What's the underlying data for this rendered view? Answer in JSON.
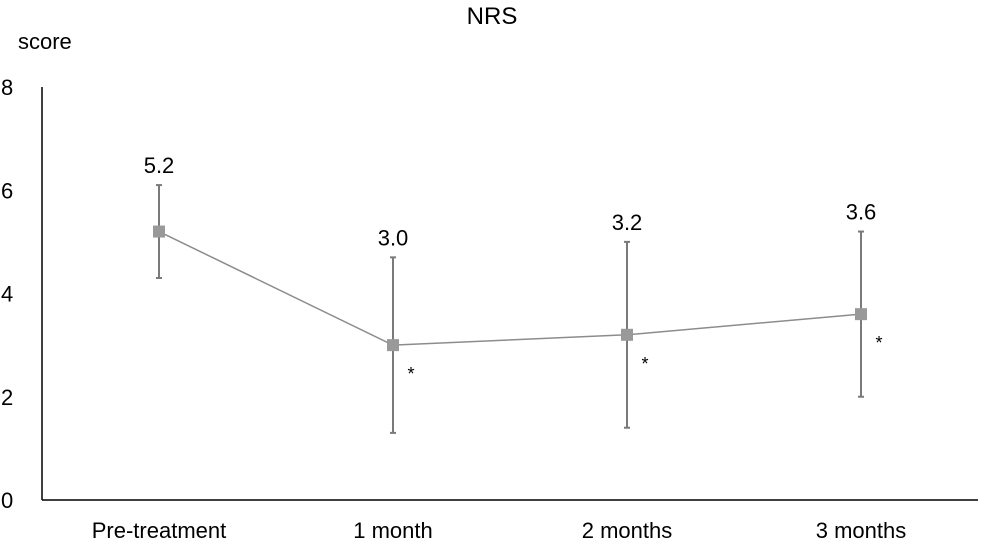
{
  "chart_data": {
    "type": "line",
    "title": "NRS",
    "xlabel": "",
    "ylabel": "score",
    "categories": [
      "Pre-treatment",
      "1 month",
      "2 months",
      "3 months"
    ],
    "ylim": [
      0,
      8
    ],
    "yticks": [
      "0",
      "2",
      "4",
      "6",
      "8"
    ],
    "grid": false,
    "series": [
      {
        "values": [
          5.2,
          3.0,
          3.2,
          3.6
        ],
        "labels": [
          "5.2",
          "3.0",
          "3.2",
          "3.6"
        ],
        "error_low": [
          4.3,
          1.3,
          1.4,
          2.0
        ],
        "error_high": [
          6.1,
          4.7,
          5.0,
          5.2
        ],
        "markers": [
          "",
          "*",
          "*",
          "*"
        ],
        "color": "#8c8c8c",
        "marker_color": "#999999"
      }
    ]
  }
}
